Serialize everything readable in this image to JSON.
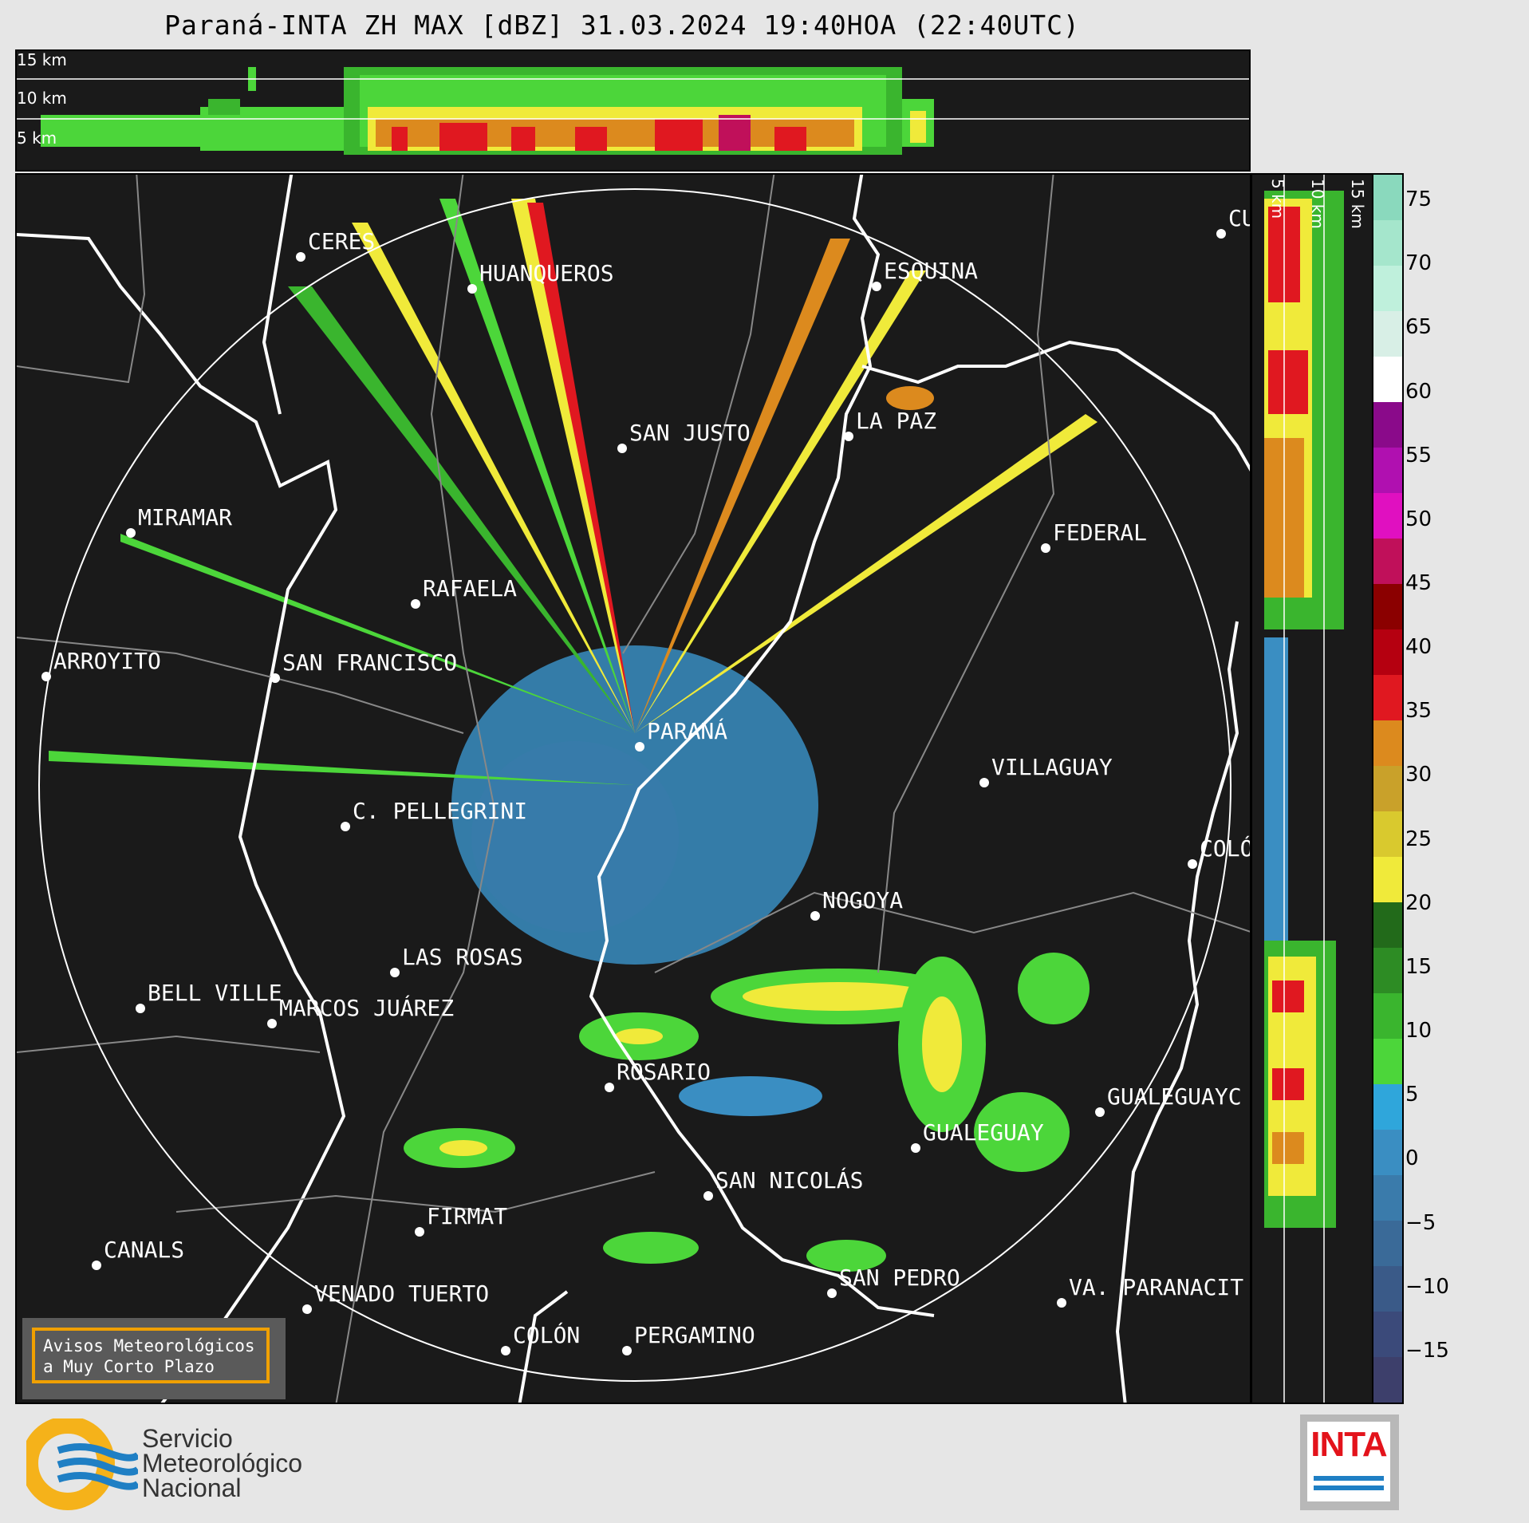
{
  "title": "Paraná-INTA ZH MAX [dBZ] 31.03.2024 19:40HOA (22:40UTC)",
  "top_panel_heights": [
    "15 km",
    "10 km",
    "5 km"
  ],
  "right_panel_heights": [
    "5 km",
    "10 km",
    "15 km"
  ],
  "colorbar": {
    "ticks": [
      "75",
      "70",
      "65",
      "60",
      "55",
      "50",
      "45",
      "40",
      "35",
      "30",
      "25",
      "20",
      "15",
      "10",
      "5",
      "0",
      "−5",
      "−10",
      "−15"
    ],
    "min": -19,
    "max": 77,
    "colors": [
      "#3d3f6b",
      "#3b4a7a",
      "#3a5a88",
      "#3a6a98",
      "#3a7bab",
      "#3a8ec2",
      "#2fa6db",
      "#4cd63a",
      "#3ab52e",
      "#2d8c24",
      "#226a1a",
      "#f0ea3a",
      "#d9c92e",
      "#c9a12a",
      "#dc8a1e",
      "#e01820",
      "#b50010",
      "#8b0000",
      "#c0105a",
      "#e010c0",
      "#b010b0",
      "#8a0a8a",
      "#ffffff",
      "#d8efe6",
      "#bff0dc",
      "#a5e6cc",
      "#8ad9bd"
    ]
  },
  "colors": {
    "background": "#1a1a1a",
    "accent_orange": "#f0a000",
    "logo_yellow": "#f5b21a",
    "logo_blue": "#1f7fc4",
    "inta_red": "#e3131b"
  },
  "cities": [
    {
      "name": "CERES"
    },
    {
      "name": "HUANQUEROS"
    },
    {
      "name": "ESQUINA"
    },
    {
      "name": "CU"
    },
    {
      "name": "LA PAZ"
    },
    {
      "name": "SAN JUSTO"
    },
    {
      "name": "MIRAMAR"
    },
    {
      "name": "FEDERAL"
    },
    {
      "name": "RAFAELA"
    },
    {
      "name": "ARROYITO"
    },
    {
      "name": "SAN FRANCISCO"
    },
    {
      "name": "PARANÁ"
    },
    {
      "name": "VILLAGUAY"
    },
    {
      "name": "C. PELLEGRINI"
    },
    {
      "name": "COLÓ"
    },
    {
      "name": "NOGOYA"
    },
    {
      "name": "LAS ROSAS"
    },
    {
      "name": "BELL VILLE"
    },
    {
      "name": "MARCOS JUÁREZ"
    },
    {
      "name": "ROSARIO"
    },
    {
      "name": "GUALEGUAYC"
    },
    {
      "name": "GUALEGUAY"
    },
    {
      "name": "SAN NICOLÁS"
    },
    {
      "name": "FIRMAT"
    },
    {
      "name": "CANALS"
    },
    {
      "name": "SAN PEDRO"
    },
    {
      "name": "VENADO TUERTO"
    },
    {
      "name": "VA. PARANACIT"
    },
    {
      "name": "COLÓN"
    },
    {
      "name": "PERGAMINO"
    }
  ],
  "warning_box": "Avisos Meteorológicos\na Muy Corto Plazo",
  "logo_smn": {
    "line1": "Servicio",
    "line2": "Meteorológico",
    "line3": "Nacional",
    "icon": "smn-sun-waves-icon"
  },
  "logo_inta": {
    "text": "INTA",
    "icon": "inta-logo-icon"
  }
}
